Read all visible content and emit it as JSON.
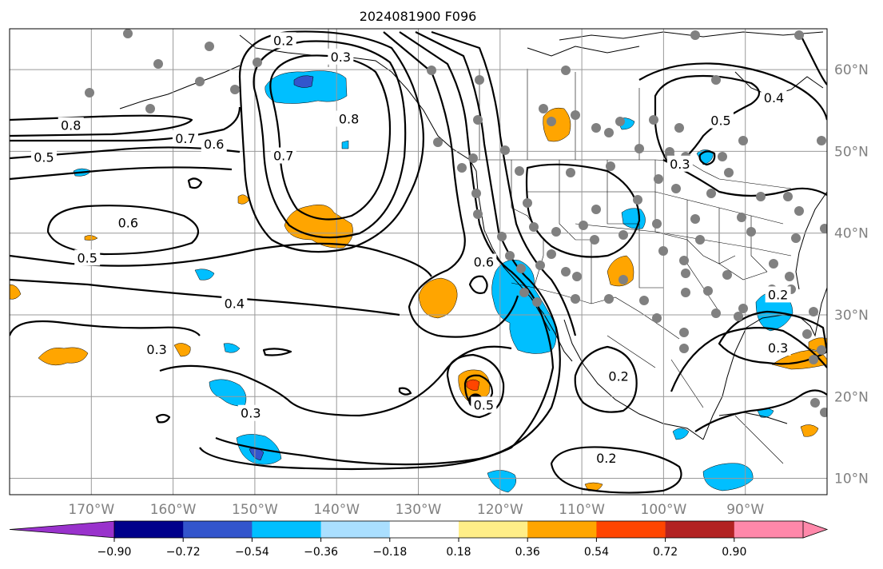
{
  "title": "2024081900 F096",
  "map": {
    "lon_range": [
      -180,
      -80
    ],
    "lat_range": [
      8,
      65
    ],
    "lon_ticks": [
      "170°W",
      "160°W",
      "150°W",
      "140°W",
      "130°W",
      "120°W",
      "110°W",
      "100°W",
      "90°W"
    ],
    "lat_ticks": [
      "60°N",
      "50°N",
      "40°N",
      "30°N",
      "20°N",
      "10°N"
    ],
    "gridlines": true,
    "contour_labels": [
      {
        "text": "0.2",
        "lon": -146.5,
        "lat": 63.6
      },
      {
        "text": "0.3",
        "lon": -139.5,
        "lat": 61.6
      },
      {
        "text": "0.8",
        "lon": -172.5,
        "lat": 53.2
      },
      {
        "text": "0.7",
        "lon": -158.5,
        "lat": 51.6
      },
      {
        "text": "0.6",
        "lon": -155.0,
        "lat": 50.9
      },
      {
        "text": "0.5",
        "lon": -175.8,
        "lat": 49.3
      },
      {
        "text": "0.8",
        "lon": -138.5,
        "lat": 54.0
      },
      {
        "text": "0.7",
        "lon": -146.5,
        "lat": 49.5
      },
      {
        "text": "0.6",
        "lon": -165.5,
        "lat": 41.3
      },
      {
        "text": "0.5",
        "lon": -170.5,
        "lat": 37.0
      },
      {
        "text": "0.4",
        "lon": -152.5,
        "lat": 31.4
      },
      {
        "text": "0.3",
        "lon": -162.0,
        "lat": 25.8
      },
      {
        "text": "0.6",
        "lon": -122.0,
        "lat": 36.5
      },
      {
        "text": "0.5",
        "lon": -122.0,
        "lat": 19.0
      },
      {
        "text": "0.3",
        "lon": -150.5,
        "lat": 18.0
      },
      {
        "text": "0.2",
        "lon": -105.5,
        "lat": 22.5
      },
      {
        "text": "0.2",
        "lon": -107.0,
        "lat": 12.5
      },
      {
        "text": "0.5",
        "lon": -93.0,
        "lat": 53.8
      },
      {
        "text": "0.4",
        "lon": -86.5,
        "lat": 56.6
      },
      {
        "text": "0.3",
        "lon": -98.0,
        "lat": 48.5
      },
      {
        "text": "0.2",
        "lon": -86.0,
        "lat": 32.5
      },
      {
        "text": "0.3",
        "lon": -86.0,
        "lat": 26.0
      }
    ],
    "marker": {
      "lon": -123.0,
      "lat": 19.5
    }
  },
  "colorbar": {
    "tick_labels": [
      "−0.90",
      "−0.72",
      "−0.54",
      "−0.36",
      "−0.18",
      "0.18",
      "0.36",
      "0.54",
      "0.72",
      "0.90"
    ],
    "colors": [
      "#9932cc",
      "#00008b",
      "#3355cc",
      "#00bfff",
      "#aadfff",
      "#ffffff",
      "#ffee88",
      "#ffa500",
      "#ff4500",
      "#b22222",
      "#ff88aa"
    ],
    "under_color": "#9932cc",
    "over_color": "#ff88aa"
  }
}
